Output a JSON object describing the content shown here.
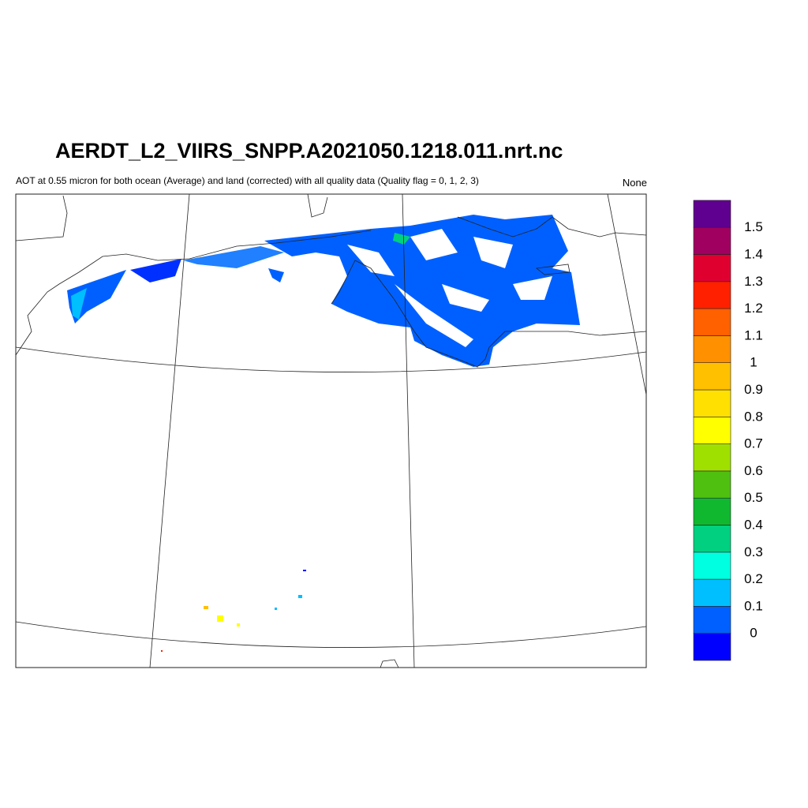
{
  "header": {
    "title": "AERDT_L2_VIIRS_SNPP.A2021050.1218.011.nrt.nc",
    "subtitle": "AOT at 0.55 micron for both ocean (Average) and land (corrected) with all quality data (Quality flag = 0, 1, 2, 3)",
    "units": "None"
  },
  "colorbar": {
    "labels": [
      0,
      0.1,
      0.2,
      0.3,
      0.4,
      0.5,
      0.6,
      0.7,
      0.8,
      0.9,
      1,
      1.1,
      1.2,
      1.3,
      1.4,
      1.5
    ],
    "colors": [
      "#0000ff",
      "#0060ff",
      "#00bfff",
      "#00ffe0",
      "#00d080",
      "#10b830",
      "#50c010",
      "#a0e000",
      "#ffff00",
      "#ffe000",
      "#ffc000",
      "#ff9000",
      "#ff6000",
      "#ff2000",
      "#e00030",
      "#a00060",
      "#600090"
    ]
  }
}
